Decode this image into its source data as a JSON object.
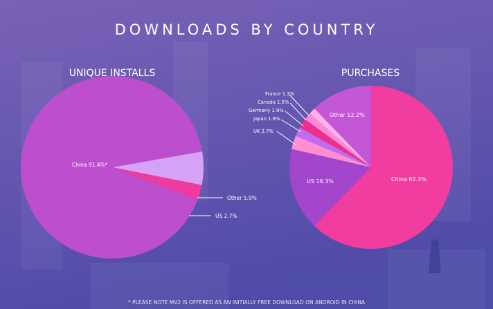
{
  "title": "DOWNLOADS BY COUNTRY",
  "footnote": "* PLEASE NOTE MV2 IS OFFERED AS AN INITIALLY FREE DOWNLOAD ON ANDROID IN CHINA",
  "colors": {
    "background_top": "#7a62b6",
    "background_bottom": "#4f4ba8"
  },
  "chart_data": [
    {
      "type": "pie",
      "title": "UNIQUE INSTALLS",
      "slices": [
        {
          "label": "China",
          "value": 91.4,
          "display": "China 91.4%*",
          "color": "#bd4fcf"
        },
        {
          "label": "Other",
          "value": 5.9,
          "display": "Other 5.9%",
          "color": "#d6a2f5"
        },
        {
          "label": "US",
          "value": 2.7,
          "display": "US 2.7%",
          "color": "#ef3a9e"
        }
      ]
    },
    {
      "type": "pie",
      "title": "PURCHASES",
      "slices": [
        {
          "label": "China",
          "value": 62.3,
          "display": "China 62.3%",
          "color": "#f13d9f"
        },
        {
          "label": "US",
          "value": 16.3,
          "display": "US 16.3%",
          "color": "#a346cc"
        },
        {
          "label": "UK",
          "value": 2.7,
          "display": "UK 2.7%",
          "color": "#ff8fd0"
        },
        {
          "label": "Japan",
          "value": 1.8,
          "display": "Japan 1.8%",
          "color": "#c36bef"
        },
        {
          "label": "Germany",
          "value": 1.9,
          "display": "Germany 1.9%",
          "color": "#ee2f8e"
        },
        {
          "label": "Canada",
          "value": 1.5,
          "display": "Canada 1.5%",
          "color": "#f98ad8"
        },
        {
          "label": "France",
          "value": 1.3,
          "display": "France 1.3%",
          "color": "#ffb3e7"
        },
        {
          "label": "Other",
          "value": 12.2,
          "display": "Other 12.2%",
          "color": "#c457d6"
        }
      ]
    }
  ]
}
